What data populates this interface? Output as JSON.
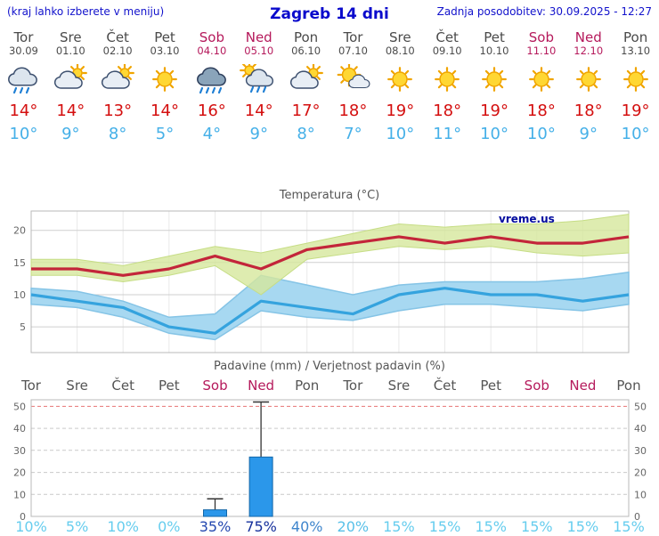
{
  "header": {
    "left_note": "(kraj lahko izberete v meniju)",
    "title": "Zagreb 14 dni",
    "updated": "Zadnja posodobitev: 30.09.2025 - 12:27"
  },
  "colors": {
    "header_blue": "#0a0acc",
    "weekend": "#b5195b",
    "weekday": "#4a4a4a",
    "tmax_red": "#d40f0f",
    "tmin_blue": "#45b0e8",
    "percent_light": "#66cdee",
    "percent_dark": "#16309c"
  },
  "forecast": {
    "days": [
      {
        "name": "Tor",
        "date": "30.09",
        "icon": "rain",
        "tmax": "14°",
        "tmin": "10°",
        "weekend": false
      },
      {
        "name": "Sre",
        "date": "01.10",
        "icon": "partly",
        "tmax": "14°",
        "tmin": "9°",
        "weekend": false
      },
      {
        "name": "Čet",
        "date": "02.10",
        "icon": "partly",
        "tmax": "13°",
        "tmin": "8°",
        "weekend": false
      },
      {
        "name": "Pet",
        "date": "03.10",
        "icon": "sunny",
        "tmax": "14°",
        "tmin": "5°",
        "weekend": false
      },
      {
        "name": "Sob",
        "date": "04.10",
        "icon": "heavy-rain",
        "tmax": "16°",
        "tmin": "4°",
        "weekend": true
      },
      {
        "name": "Ned",
        "date": "05.10",
        "icon": "sun-shower",
        "tmax": "14°",
        "tmin": "9°",
        "weekend": true
      },
      {
        "name": "Pon",
        "date": "06.10",
        "icon": "partly",
        "tmax": "17°",
        "tmin": "8°",
        "weekend": false
      },
      {
        "name": "Tor",
        "date": "07.10",
        "icon": "mostly-sunny",
        "tmax": "18°",
        "tmin": "7°",
        "weekend": false
      },
      {
        "name": "Sre",
        "date": "08.10",
        "icon": "sunny",
        "tmax": "19°",
        "tmin": "10°",
        "weekend": false
      },
      {
        "name": "Čet",
        "date": "09.10",
        "icon": "sunny",
        "tmax": "18°",
        "tmin": "11°",
        "weekend": false
      },
      {
        "name": "Pet",
        "date": "10.10",
        "icon": "sunny",
        "tmax": "19°",
        "tmin": "10°",
        "weekend": false
      },
      {
        "name": "Sob",
        "date": "11.10",
        "icon": "sunny",
        "tmax": "18°",
        "tmin": "10°",
        "weekend": true
      },
      {
        "name": "Ned",
        "date": "12.10",
        "icon": "sunny",
        "tmax": "18°",
        "tmin": "9°",
        "weekend": true
      },
      {
        "name": "Pon",
        "date": "13.10",
        "icon": "sunny",
        "tmax": "19°",
        "tmin": "10°",
        "weekend": false
      }
    ]
  },
  "chart_data": [
    {
      "type": "line",
      "title": "Temperatura (°C)",
      "watermark": "vreme.us",
      "x": [
        "Tor 30.09",
        "Sre 01.10",
        "Čet 02.10",
        "Pet 03.10",
        "Sob 04.10",
        "Ned 05.10",
        "Pon 06.10",
        "Tor 07.10",
        "Sre 08.10",
        "Čet 09.10",
        "Pet 10.10",
        "Sob 11.10",
        "Ned 12.10",
        "Pon 13.10"
      ],
      "ylim": [
        1,
        23
      ],
      "yticks": [
        5,
        10,
        15,
        20
      ],
      "grid": true,
      "band_colors": {
        "max": "#d6e79c",
        "min": "#a7d8f1"
      },
      "series": [
        {
          "name": "max",
          "color": "#c3253a",
          "values": [
            14,
            14,
            13,
            14,
            16,
            14,
            17,
            18,
            19,
            18,
            19,
            18,
            18,
            19
          ]
        },
        {
          "name": "min",
          "color": "#35a3de",
          "values": [
            10,
            9,
            8,
            5,
            4,
            9,
            8,
            7,
            10,
            11,
            10,
            10,
            9,
            10
          ]
        },
        {
          "name": "max_upper",
          "values": [
            15.5,
            15.5,
            14.5,
            16,
            17.5,
            16.5,
            18,
            19.5,
            21,
            20.5,
            21,
            21,
            21.5,
            22.5
          ]
        },
        {
          "name": "max_lower",
          "values": [
            13,
            13,
            12,
            13,
            14.5,
            10,
            15.5,
            16.5,
            17.5,
            17,
            17.5,
            16.5,
            16,
            16.5
          ]
        },
        {
          "name": "min_upper",
          "values": [
            11,
            10.5,
            9,
            6.5,
            7,
            13,
            11.5,
            10,
            11.5,
            12,
            12,
            12,
            12.5,
            13.5
          ]
        },
        {
          "name": "min_lower",
          "values": [
            8.5,
            8,
            6.5,
            4,
            3,
            7.5,
            6.5,
            6,
            7.5,
            8.5,
            8.5,
            8,
            7.5,
            8.5
          ]
        }
      ]
    },
    {
      "type": "bar",
      "title": "Padavine (mm) / Verjetnost padavin (%)",
      "categories": [
        "Tor",
        "Sre",
        "Čet",
        "Pet",
        "Sob",
        "Ned",
        "Pon",
        "Tor",
        "Sre",
        "Čet",
        "Pet",
        "Sob",
        "Ned",
        "Pon"
      ],
      "weekend": [
        false,
        false,
        false,
        false,
        true,
        true,
        false,
        false,
        false,
        false,
        false,
        true,
        true,
        false
      ],
      "values": [
        0,
        0,
        0,
        0,
        3,
        27,
        0,
        0,
        0,
        0,
        0,
        0,
        0,
        0
      ],
      "whiskers": [
        0,
        0,
        0,
        0,
        8,
        52,
        0,
        0,
        0,
        0,
        0,
        0,
        0,
        0
      ],
      "probabilities": [
        "10%",
        "5%",
        "10%",
        "0%",
        "35%",
        "75%",
        "40%",
        "20%",
        "15%",
        "15%",
        "15%",
        "15%",
        "15%",
        "15%"
      ],
      "prob_colors": [
        "#66cdee",
        "#66cdee",
        "#66cdee",
        "#66cdee",
        "#2448b0",
        "#16309c",
        "#3e85cc",
        "#58c0e8",
        "#66cdee",
        "#66cdee",
        "#66cdee",
        "#66cdee",
        "#66cdee",
        "#66cdee"
      ],
      "ylim": [
        0,
        53
      ],
      "yticks": [
        0,
        10,
        20,
        30,
        40,
        50
      ],
      "bar_color": "#2b97ea",
      "bar_border": "#1266a8",
      "grid_red": "#e87474"
    }
  ]
}
